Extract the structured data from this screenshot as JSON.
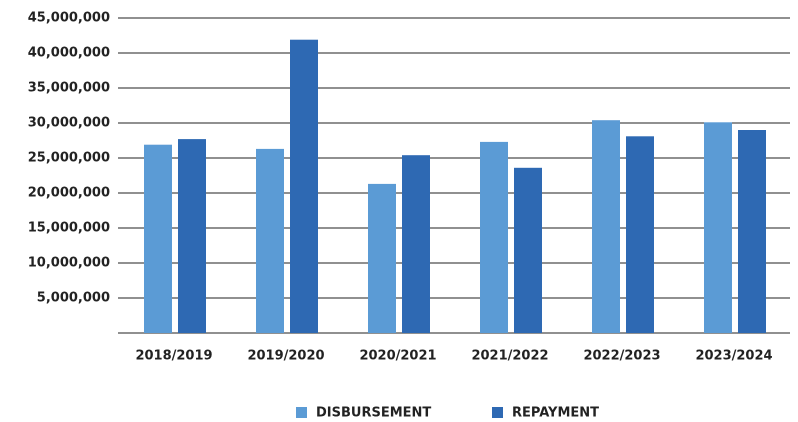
{
  "chart_data": {
    "type": "bar",
    "categories": [
      "2018/2019",
      "2019/2020",
      "2020/2021",
      "2021/2022",
      "2022/2023",
      "2023/2024"
    ],
    "series": [
      {
        "name": "DISBURSEMENT",
        "color": "#5b9bd5",
        "values": [
          26900000,
          26300000,
          21300000,
          27300000,
          30400000,
          30100000
        ]
      },
      {
        "name": "REPAYMENT",
        "color": "#2e69b3",
        "values": [
          27700000,
          41900000,
          25400000,
          23600000,
          28100000,
          29000000
        ]
      }
    ],
    "ylim": [
      0,
      45000000
    ],
    "yticks": [
      {
        "value": 5000000,
        "label": "5,000,000"
      },
      {
        "value": 10000000,
        "label": "10,000,000"
      },
      {
        "value": 15000000,
        "label": "15,000,000"
      },
      {
        "value": 20000000,
        "label": "20,000,000"
      },
      {
        "value": 25000000,
        "label": "25,000,000"
      },
      {
        "value": 30000000,
        "label": "30,000,000"
      },
      {
        "value": 35000000,
        "label": "35,000,000"
      },
      {
        "value": 40000000,
        "label": "40,000,000"
      },
      {
        "value": 45000000,
        "label": "45,000,000"
      }
    ],
    "grid": true,
    "legend": "bottom"
  }
}
